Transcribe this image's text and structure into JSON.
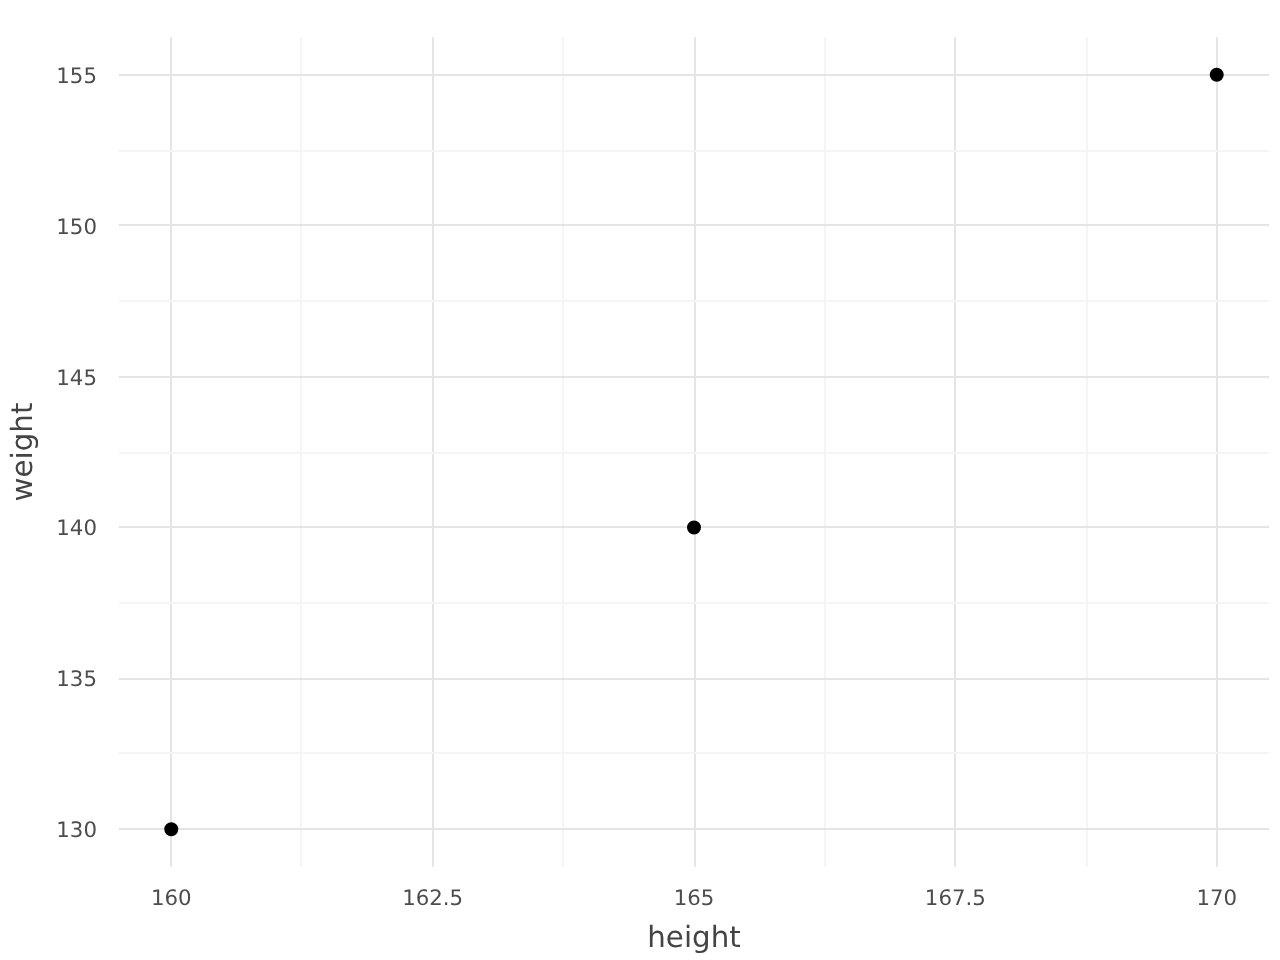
{
  "chart_data": {
    "type": "scatter",
    "xlabel": "height",
    "ylabel": "weight",
    "x": [
      160,
      165,
      170
    ],
    "series": [
      {
        "color": "#000000",
        "values": [
          130,
          140,
          155
        ]
      }
    ],
    "xlim": [
      159.5,
      170.5
    ],
    "ylim": [
      128.75,
      156.25
    ],
    "xticks": [
      160,
      162.5,
      165,
      167.5,
      170
    ],
    "yticks": [
      130,
      135,
      140,
      145,
      150,
      155
    ],
    "grid": true,
    "marker": "circle"
  }
}
